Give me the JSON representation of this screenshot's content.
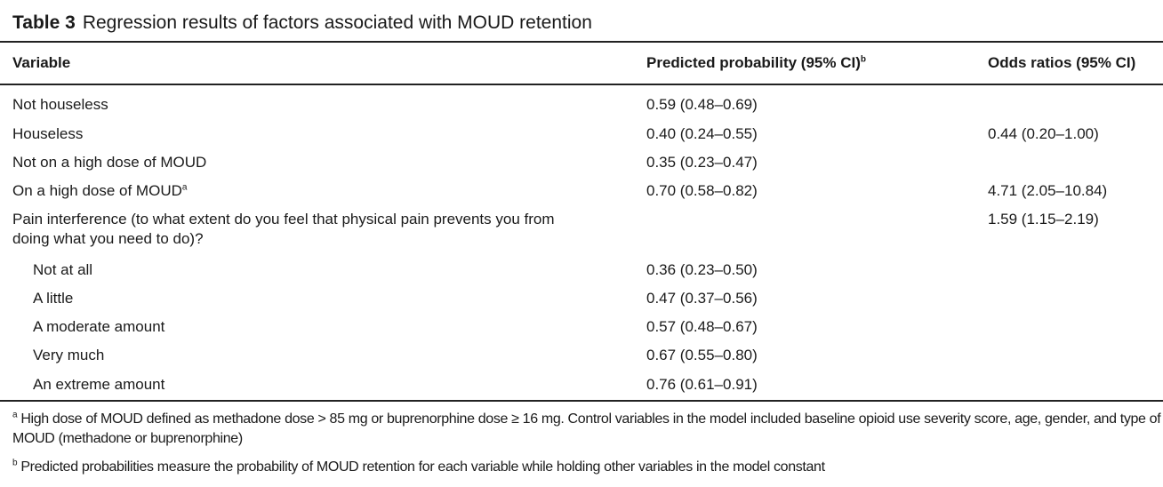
{
  "table": {
    "label": "Table 3",
    "caption": "Regression results of factors associated with MOUD retention",
    "headers": {
      "variable": "Variable",
      "predicted": "Predicted probability (95% CI)",
      "predicted_sup": "b",
      "odds": "Odds ratios (95% CI)"
    },
    "rows": [
      {
        "variable": "Not houseless",
        "sup": "",
        "predicted": "0.59 (0.48–0.69)",
        "odds": "",
        "indent": false
      },
      {
        "variable": "Houseless",
        "sup": "",
        "predicted": "0.40 (0.24–0.55)",
        "odds": "0.44 (0.20–1.00)",
        "indent": false
      },
      {
        "variable": "Not on a high dose of MOUD",
        "sup": "",
        "predicted": "0.35 (0.23–0.47)",
        "odds": "",
        "indent": false
      },
      {
        "variable": "On a high dose of MOUD",
        "sup": "a",
        "predicted": "0.70 (0.58–0.82)",
        "odds": "4.71 (2.05–10.84)",
        "indent": false
      },
      {
        "variable": "Pain interference (to what extent do you feel that physical pain prevents you from",
        "variable2": "doing what you need to do)?",
        "sup": "",
        "predicted": "",
        "odds": "1.59 (1.15–2.19)",
        "indent": false
      },
      {
        "variable": "Not at all",
        "sup": "",
        "predicted": "0.36 (0.23–0.50)",
        "odds": "",
        "indent": true
      },
      {
        "variable": "A little",
        "sup": "",
        "predicted": "0.47 (0.37–0.56)",
        "odds": "",
        "indent": true
      },
      {
        "variable": "A moderate amount",
        "sup": "",
        "predicted": "0.57 (0.48–0.67)",
        "odds": "",
        "indent": true
      },
      {
        "variable": "Very much",
        "sup": "",
        "predicted": "0.67 (0.55–0.80)",
        "odds": "",
        "indent": true
      },
      {
        "variable": "An extreme amount",
        "sup": "",
        "predicted": "0.76 (0.61–0.91)",
        "odds": "",
        "indent": true
      }
    ],
    "footnotes": [
      {
        "mark": "a",
        "text": "High dose of MOUD defined as methadone dose > 85 mg or buprenorphine dose ≥ 16 mg. Control variables in the model included baseline opioid use severity score, age, gender, and type of MOUD (methadone or buprenorphine)"
      },
      {
        "mark": "b",
        "text": "Predicted probabilities measure the probability of MOUD retention for each variable while holding other variables in the model constant"
      }
    ]
  }
}
